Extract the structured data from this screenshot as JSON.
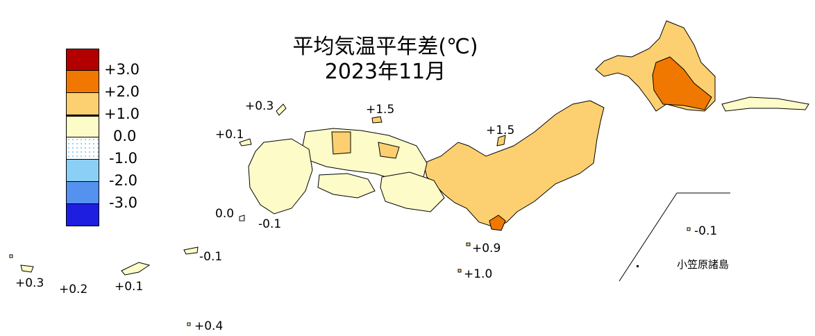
{
  "title_line1": "平均気温平年差(℃)",
  "title_line2": "2023年11月",
  "legend": [
    {
      "label": "+3.0",
      "color": "#b20000"
    },
    {
      "label": "+2.0",
      "color": "#f07800"
    },
    {
      "label": "+1.0",
      "color": "#fcd070"
    },
    {
      "label": "0.0",
      "color": "#fdfbc8"
    },
    {
      "label": "-1.0",
      "color": "#cfeefd"
    },
    {
      "label": "-2.0",
      "color": "#8ccff5"
    },
    {
      "label": "-3.0",
      "color": "#5591ee"
    },
    {
      "label": "",
      "color": "#1e1ee0"
    }
  ],
  "station_labels": [
    {
      "text": "+0.3"
    },
    {
      "text": "+0.1"
    },
    {
      "text": "+1.5"
    },
    {
      "text": "+1.5"
    },
    {
      "text": "0.0"
    },
    {
      "text": "-0.1"
    },
    {
      "text": "-0.1"
    },
    {
      "text": "+0.9"
    },
    {
      "text": "+1.0"
    },
    {
      "text": "-0.1"
    },
    {
      "text": "+0.3"
    },
    {
      "text": "+0.2"
    },
    {
      "text": "+0.1"
    },
    {
      "text": "+0.4"
    }
  ],
  "bonin_label": "小笠原諸島"
}
